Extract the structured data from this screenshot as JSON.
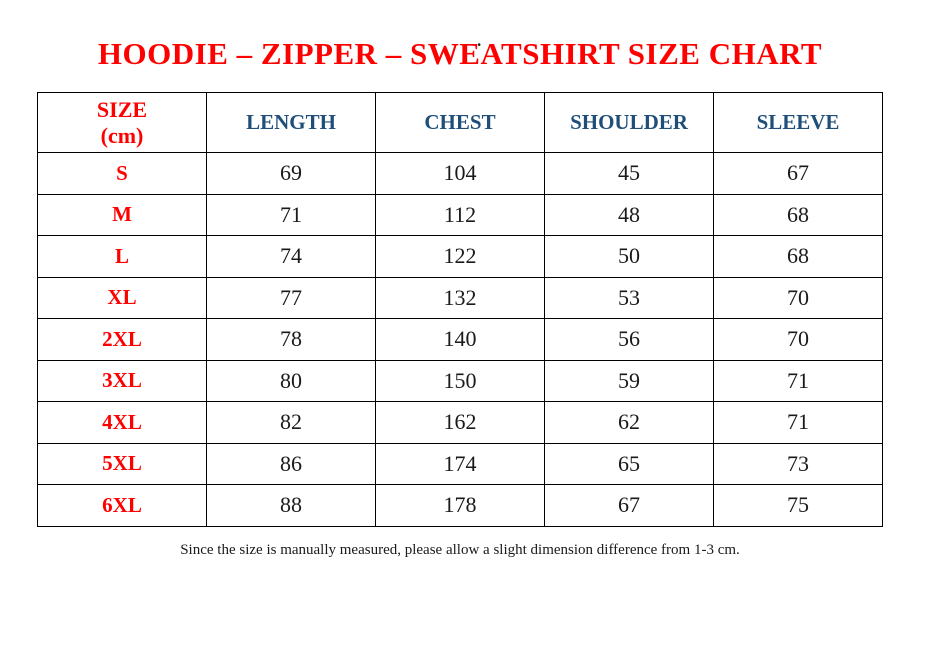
{
  "page": {
    "stray_mark": ".",
    "title": "HOODIE – ZIPPER – SWEATSHIRT SIZE CHART",
    "footnote": "Since the size is manually measured, please allow a slight dimension difference from 1-3 cm."
  },
  "colors": {
    "title_red": "#ff0000",
    "size_label_red": "#ff0000",
    "header_blue": "#1f4e79",
    "value_black": "#1a1a1a",
    "border_black": "#000000",
    "background": "#ffffff"
  },
  "table": {
    "header": {
      "size_column_line1": "SIZE",
      "size_column_line2": "(cm)",
      "measure_columns": [
        "LENGTH",
        "CHEST",
        "SHOULDER",
        "SLEEVE"
      ]
    },
    "rows": [
      {
        "size": "S",
        "length": "69",
        "chest": "104",
        "shoulder": "45",
        "sleeve": "67"
      },
      {
        "size": "M",
        "length": "71",
        "chest": "112",
        "shoulder": "48",
        "sleeve": "68"
      },
      {
        "size": "L",
        "length": "74",
        "chest": "122",
        "shoulder": "50",
        "sleeve": "68"
      },
      {
        "size": "XL",
        "length": "77",
        "chest": "132",
        "shoulder": "53",
        "sleeve": "70"
      },
      {
        "size": "2XL",
        "length": "78",
        "chest": "140",
        "shoulder": "56",
        "sleeve": "70"
      },
      {
        "size": "3XL",
        "length": "80",
        "chest": "150",
        "shoulder": "59",
        "sleeve": "71"
      },
      {
        "size": "4XL",
        "length": "82",
        "chest": "162",
        "shoulder": "62",
        "sleeve": "71"
      },
      {
        "size": "5XL",
        "length": "86",
        "chest": "174",
        "shoulder": "65",
        "sleeve": "73"
      },
      {
        "size": "6XL",
        "length": "88",
        "chest": "178",
        "shoulder": "67",
        "sleeve": "75"
      }
    ]
  }
}
